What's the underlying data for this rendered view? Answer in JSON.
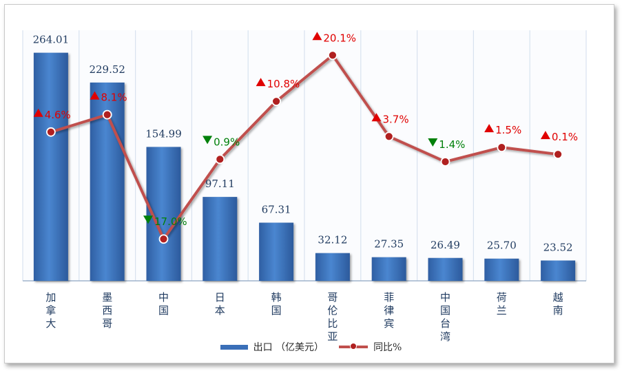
{
  "chart_data": {
    "type": "bar",
    "categories": [
      "加拿大",
      "墨西哥",
      "中国",
      "日本",
      "韩国",
      "哥伦比亚",
      "菲律宾",
      "中国台湾",
      "荷兰",
      "越南"
    ],
    "series": [
      {
        "name": "出口 （亿美元）",
        "type": "bar",
        "values": [
          264.01,
          229.52,
          154.99,
          97.11,
          67.31,
          32.12,
          27.35,
          26.49,
          25.7,
          23.52
        ],
        "value_labels": [
          "264.01",
          "229.52",
          "154.99",
          "97.11",
          "67.31",
          "32.12",
          "27.35",
          "26.49",
          "25.70",
          "23.52"
        ],
        "color": "#3a6fb8"
      },
      {
        "name": "同比%",
        "type": "line",
        "values": [
          4.6,
          8.1,
          -17.0,
          -0.9,
          10.8,
          20.1,
          3.7,
          -1.4,
          1.5,
          0.1
        ],
        "value_labels": [
          "4.6%",
          "8.1%",
          "17.0%",
          "0.9%",
          "10.8%",
          "20.1%",
          "3.7%",
          "1.4%",
          "1.5%",
          "0.1%"
        ],
        "color": "#c0504d"
      }
    ],
    "colors": {
      "up": "#e00000",
      "down": "#00800a",
      "marker": "#b02020"
    },
    "grid": "vertical",
    "legend_position": "bottom"
  }
}
